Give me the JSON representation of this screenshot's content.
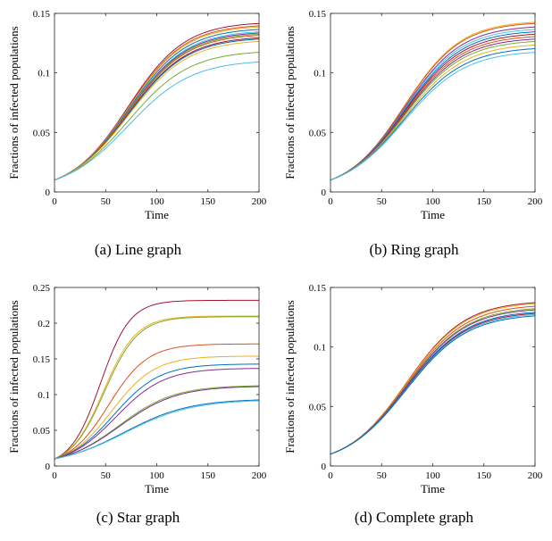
{
  "colors": [
    "#0072BD",
    "#D95319",
    "#EDB120",
    "#7E2F8E",
    "#77AC30",
    "#4DBEEE",
    "#A2142F"
  ],
  "chart_data": [
    {
      "type": "line",
      "caption": "(a) Line graph",
      "xlabel": "Time",
      "ylabel": "Fractions of infected populations",
      "xlim": [
        0,
        200
      ],
      "ylim": [
        0,
        0.15
      ],
      "xticks": [
        "0",
        "50",
        "100",
        "150",
        "200"
      ],
      "yticks": [
        "0",
        "0.05",
        "0.1",
        "0.15"
      ],
      "grid": false,
      "midpoint_x": 72,
      "series": [
        {
          "values_at": [
            0,
            200
          ],
          "y_start": 0.01,
          "y_end": 0.143,
          "color": "#A2142F"
        },
        {
          "values_at": [
            0,
            200
          ],
          "y_start": 0.01,
          "y_end": 0.141,
          "color": "#D95319"
        },
        {
          "values_at": [
            0,
            200
          ],
          "y_start": 0.01,
          "y_end": 0.14,
          "color": "#EDB120"
        },
        {
          "values_at": [
            0,
            200
          ],
          "y_start": 0.01,
          "y_end": 0.138,
          "color": "#0072BD"
        },
        {
          "values_at": [
            0,
            200
          ],
          "y_start": 0.01,
          "y_end": 0.136,
          "color": "#4DBEEE"
        },
        {
          "values_at": [
            0,
            200
          ],
          "y_start": 0.01,
          "y_end": 0.135,
          "color": "#7E2F8E"
        },
        {
          "values_at": [
            0,
            200
          ],
          "y_start": 0.01,
          "y_end": 0.134,
          "color": "#77AC30"
        },
        {
          "values_at": [
            0,
            200
          ],
          "y_start": 0.01,
          "y_end": 0.133,
          "color": "#D95319"
        },
        {
          "values_at": [
            0,
            200
          ],
          "y_start": 0.01,
          "y_end": 0.131,
          "color": "#A2142F"
        },
        {
          "values_at": [
            0,
            200
          ],
          "y_start": 0.01,
          "y_end": 0.13,
          "color": "#0072BD"
        },
        {
          "values_at": [
            0,
            200
          ],
          "y_start": 0.01,
          "y_end": 0.128,
          "color": "#EDB120"
        },
        {
          "values_at": [
            0,
            200
          ],
          "y_start": 0.01,
          "y_end": 0.119,
          "color": "#77AC30"
        },
        {
          "values_at": [
            0,
            200
          ],
          "y_start": 0.01,
          "y_end": 0.111,
          "color": "#4DBEEE"
        }
      ]
    },
    {
      "type": "line",
      "caption": "(b) Ring graph",
      "xlabel": "Time",
      "ylabel": "Fractions of infected populations",
      "xlim": [
        0,
        200
      ],
      "ylim": [
        0,
        0.15
      ],
      "xticks": [
        "0",
        "50",
        "100",
        "150",
        "200"
      ],
      "yticks": [
        "0",
        "0.05",
        "0.1",
        "0.15"
      ],
      "grid": false,
      "midpoint_x": 72,
      "series": [
        {
          "values_at": [
            0,
            200
          ],
          "y_start": 0.01,
          "y_end": 0.144,
          "color": "#EDB120"
        },
        {
          "values_at": [
            0,
            200
          ],
          "y_start": 0.01,
          "y_end": 0.143,
          "color": "#D95319"
        },
        {
          "values_at": [
            0,
            200
          ],
          "y_start": 0.01,
          "y_end": 0.14,
          "color": "#7E2F8E"
        },
        {
          "values_at": [
            0,
            200
          ],
          "y_start": 0.01,
          "y_end": 0.138,
          "color": "#4DBEEE"
        },
        {
          "values_at": [
            0,
            200
          ],
          "y_start": 0.01,
          "y_end": 0.136,
          "color": "#0072BD"
        },
        {
          "values_at": [
            0,
            200
          ],
          "y_start": 0.01,
          "y_end": 0.134,
          "color": "#A2142F"
        },
        {
          "values_at": [
            0,
            200
          ],
          "y_start": 0.01,
          "y_end": 0.132,
          "color": "#D95319"
        },
        {
          "values_at": [
            0,
            200
          ],
          "y_start": 0.01,
          "y_end": 0.13,
          "color": "#7E2F8E"
        },
        {
          "values_at": [
            0,
            200
          ],
          "y_start": 0.01,
          "y_end": 0.128,
          "color": "#77AC30"
        },
        {
          "values_at": [
            0,
            200
          ],
          "y_start": 0.01,
          "y_end": 0.125,
          "color": "#EDB120"
        },
        {
          "values_at": [
            0,
            200
          ],
          "y_start": 0.01,
          "y_end": 0.122,
          "color": "#0072BD"
        },
        {
          "values_at": [
            0,
            200
          ],
          "y_start": 0.01,
          "y_end": 0.119,
          "color": "#4DBEEE"
        }
      ]
    },
    {
      "type": "line",
      "caption": "(c) Star graph",
      "xlabel": "Time",
      "ylabel": "Fractions of infected populations",
      "xlim": [
        0,
        200
      ],
      "ylim": [
        0,
        0.25
      ],
      "xticks": [
        "0",
        "50",
        "100",
        "150",
        "200"
      ],
      "yticks": [
        "0",
        "0.05",
        "0.1",
        "0.15",
        "0.2",
        "0.25"
      ],
      "grid": false,
      "midpoint_x": 55,
      "series": [
        {
          "values_at": [
            0,
            200
          ],
          "y_start": 0.01,
          "y_end": 0.232,
          "color": "#A2142F",
          "midpoint_x": 45
        },
        {
          "values_at": [
            0,
            200
          ],
          "y_start": 0.01,
          "y_end": 0.21,
          "color": "#EDB120",
          "midpoint_x": 48
        },
        {
          "values_at": [
            0,
            200
          ],
          "y_start": 0.01,
          "y_end": 0.209,
          "color": "#77AC30",
          "midpoint_x": 49
        },
        {
          "values_at": [
            0,
            200
          ],
          "y_start": 0.01,
          "y_end": 0.171,
          "color": "#D95319",
          "midpoint_x": 53
        },
        {
          "values_at": [
            0,
            200
          ],
          "y_start": 0.01,
          "y_end": 0.154,
          "color": "#EDB120",
          "midpoint_x": 56
        },
        {
          "values_at": [
            0,
            200
          ],
          "y_start": 0.01,
          "y_end": 0.143,
          "color": "#0072BD",
          "midpoint_x": 58
        },
        {
          "values_at": [
            0,
            200
          ],
          "y_start": 0.01,
          "y_end": 0.137,
          "color": "#7E2F8E",
          "midpoint_x": 60
        },
        {
          "values_at": [
            0,
            200
          ],
          "y_start": 0.01,
          "y_end": 0.113,
          "color": "#77AC30",
          "midpoint_x": 63
        },
        {
          "values_at": [
            0,
            200
          ],
          "y_start": 0.01,
          "y_end": 0.112,
          "color": "#7E2F8E",
          "midpoint_x": 64
        },
        {
          "values_at": [
            0,
            200
          ],
          "y_start": 0.01,
          "y_end": 0.094,
          "color": "#0072BD",
          "midpoint_x": 68
        },
        {
          "values_at": [
            0,
            200
          ],
          "y_start": 0.01,
          "y_end": 0.093,
          "color": "#4DBEEE",
          "midpoint_x": 69
        }
      ]
    },
    {
      "type": "line",
      "caption": "(d) Complete graph",
      "xlabel": "Time",
      "ylabel": "Fractions of infected populations",
      "xlim": [
        0,
        200
      ],
      "ylim": [
        0,
        0.15
      ],
      "xticks": [
        "0",
        "50",
        "100",
        "150",
        "200"
      ],
      "yticks": [
        "0",
        "0.05",
        "0.1",
        "0.15"
      ],
      "grid": false,
      "midpoint_x": 74,
      "series": [
        {
          "values_at": [
            0,
            200
          ],
          "y_start": 0.01,
          "y_end": 0.139,
          "color": "#A2142F"
        },
        {
          "values_at": [
            0,
            200
          ],
          "y_start": 0.01,
          "y_end": 0.138,
          "color": "#EDB120"
        },
        {
          "values_at": [
            0,
            200
          ],
          "y_start": 0.01,
          "y_end": 0.136,
          "color": "#D95319"
        },
        {
          "values_at": [
            0,
            200
          ],
          "y_start": 0.01,
          "y_end": 0.134,
          "color": "#77AC30"
        },
        {
          "values_at": [
            0,
            200
          ],
          "y_start": 0.01,
          "y_end": 0.133,
          "color": "#7E2F8E"
        },
        {
          "values_at": [
            0,
            200
          ],
          "y_start": 0.01,
          "y_end": 0.131,
          "color": "#0072BD"
        },
        {
          "values_at": [
            0,
            200
          ],
          "y_start": 0.01,
          "y_end": 0.13,
          "color": "#A2142F"
        },
        {
          "values_at": [
            0,
            200
          ],
          "y_start": 0.01,
          "y_end": 0.129,
          "color": "#4DBEEE"
        },
        {
          "values_at": [
            0,
            200
          ],
          "y_start": 0.01,
          "y_end": 0.128,
          "color": "#0072BD"
        }
      ]
    }
  ]
}
